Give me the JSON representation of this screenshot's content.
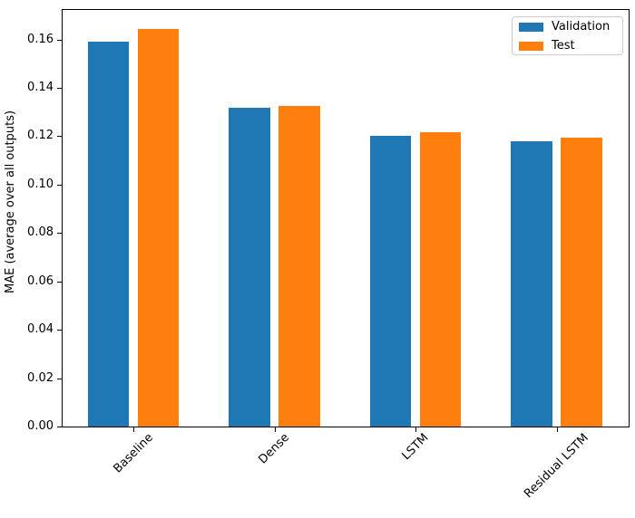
{
  "chart_data": {
    "type": "bar",
    "title": "",
    "xlabel": "",
    "ylabel": "MAE (average over all outputs)",
    "categories": [
      "Baseline",
      "Dense",
      "LSTM",
      "Residual LSTM"
    ],
    "series": [
      {
        "name": "Validation",
        "color": "#1f77b4",
        "values": [
          0.159,
          0.1318,
          0.12,
          0.1178
        ]
      },
      {
        "name": "Test",
        "color": "#ff7f0e",
        "values": [
          0.1643,
          0.1324,
          0.1216,
          0.1195
        ]
      }
    ],
    "ylim": [
      0,
      0.1722
    ],
    "yticks": [
      0.0,
      0.02,
      0.04,
      0.06,
      0.08,
      0.1,
      0.12,
      0.14,
      0.16
    ],
    "ytick_decimals": 2,
    "xtick_rotation": 45,
    "grid": false,
    "legend_position": "upper right",
    "legend_border_color": "#cccccc",
    "spine_color": "#000000",
    "background_color": "#ffffff"
  }
}
